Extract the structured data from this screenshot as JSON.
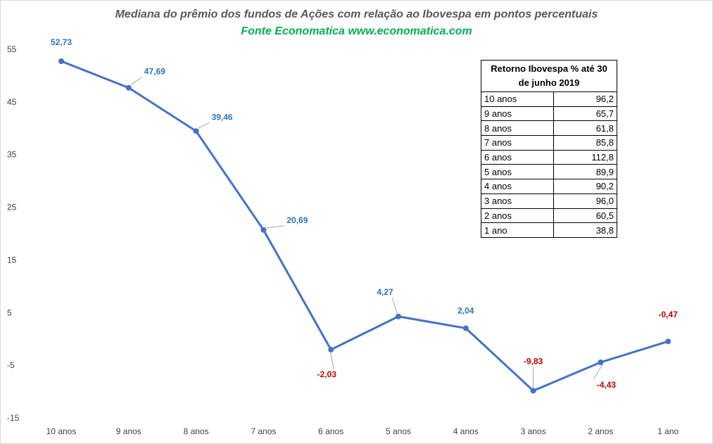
{
  "chart_data": {
    "type": "line",
    "title": "Mediana do prêmio dos fundos de Ações com relação ao Ibovespa em pontos percentuais",
    "subtitle": "Fonte Economatica www.economatica.com",
    "categories": [
      "10 anos",
      "9 anos",
      "8 anos",
      "7 anos",
      "6 anos",
      "5 anos",
      "4 anos",
      "3 anos",
      "2 anos",
      "1 ano"
    ],
    "series": [
      {
        "values": [
          52.73,
          47.69,
          39.46,
          20.69,
          -2.03,
          4.27,
          2.04,
          -9.83,
          -4.43,
          -0.47
        ]
      }
    ],
    "data_labels": [
      "52,73",
      "47,69",
      "39,46",
      "20,69",
      "-2,03",
      "4,27",
      "2,04",
      "-9,83",
      "-4,43",
      "-0,47"
    ],
    "ylim": [
      -15,
      55
    ],
    "yticks": [
      55,
      45,
      35,
      25,
      15,
      5,
      -5,
      -15
    ],
    "xlabel": "",
    "ylabel": "",
    "grid": false,
    "colors": {
      "line": "#4472c4",
      "positive_label": "#2e75b6",
      "negative_label": "#c00000",
      "leader": "#a6a6a6"
    }
  },
  "table": {
    "header": "Retorno Ibovespa % até 30 de junho 2019",
    "rows": [
      {
        "label": "10 anos",
        "value": "96,2"
      },
      {
        "label": "9 anos",
        "value": "65,7"
      },
      {
        "label": "8 anos",
        "value": "61,8"
      },
      {
        "label": "7 anos",
        "value": "85,8"
      },
      {
        "label": "6 anos",
        "value": "112,8"
      },
      {
        "label": "5 anos",
        "value": "89,9"
      },
      {
        "label": "4 anos",
        "value": "90,2"
      },
      {
        "label": "3 anos",
        "value": "96,0"
      },
      {
        "label": "2 anos",
        "value": "60,5"
      },
      {
        "label": "1 ano",
        "value": "38,8"
      }
    ]
  }
}
